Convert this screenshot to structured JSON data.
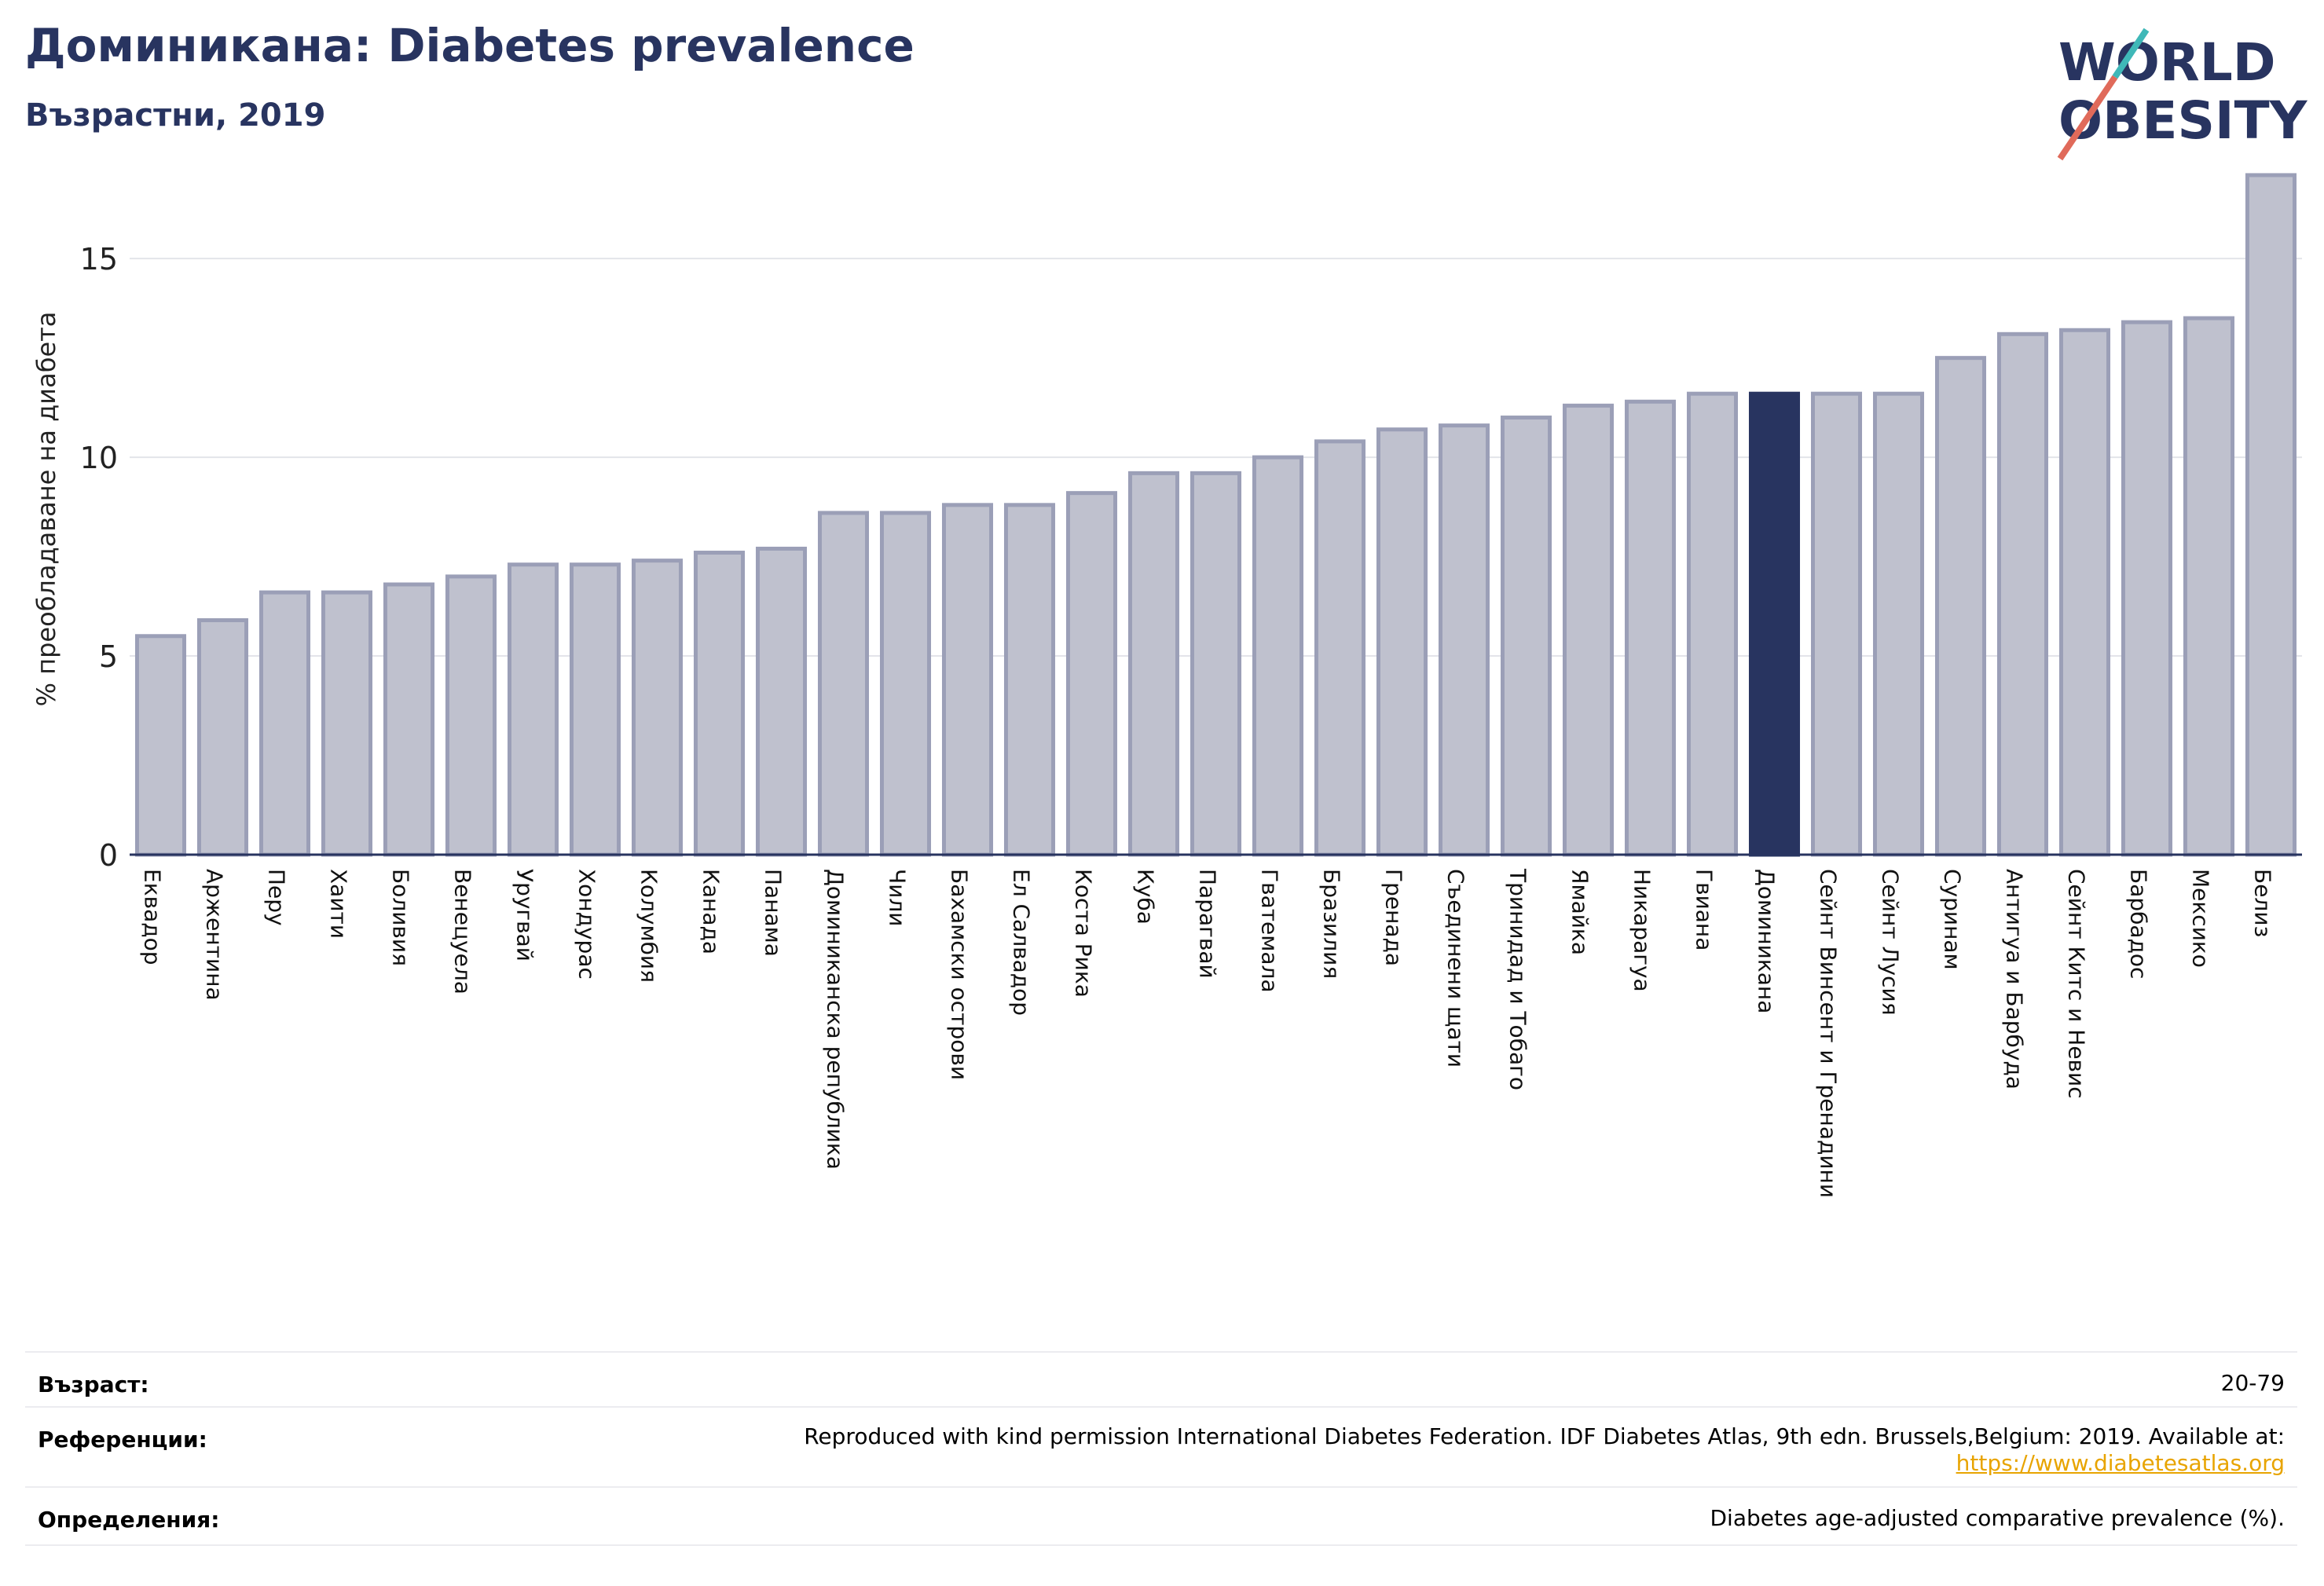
{
  "header": {
    "title": "Доминикана: Diabetes prevalence",
    "subtitle": "Възрастни, 2019"
  },
  "logo": {
    "line1": "WORLD",
    "line2": "OBESITY"
  },
  "colors": {
    "bar": "#bfc1ce",
    "bar_border": "#9b9fb7",
    "highlight": "#283460",
    "title": "#283460",
    "link": "#e8a400"
  },
  "chart_data": {
    "type": "bar",
    "ylabel": "% преобладаване на диабета",
    "ylim": [
      0,
      17
    ],
    "yticks": [
      0,
      5,
      10,
      15
    ],
    "grid": true,
    "highlight": "Доминикана",
    "categories": [
      "Еквадор",
      "Аржентина",
      "Перу",
      "Хаити",
      "Боливия",
      "Венецуела",
      "Уругвай",
      "Хондурас",
      "Колумбия",
      "Канада",
      "Панама",
      "Доминиканска република",
      "Чили",
      "Бахамски острови",
      "Ел Салвадор",
      "Коста Рика",
      "Куба",
      "Парагвай",
      "Гватемала",
      "Бразилия",
      "Гренада",
      "Съединени щати",
      "Тринидад и Тобаго",
      "Ямайка",
      "Никарагуа",
      "Гвиана",
      "Доминикана",
      "Сейнт Винсент и Гренадини",
      "Сейнт Лусия",
      "Суринам",
      "Антигуа и Барбуда",
      "Сейнт Китс и Невис",
      "Барбадос",
      "Мексико",
      "Белиз"
    ],
    "values": [
      5.5,
      5.9,
      6.6,
      6.6,
      6.8,
      7.0,
      7.3,
      7.3,
      7.4,
      7.6,
      7.7,
      8.6,
      8.6,
      8.8,
      8.8,
      9.1,
      9.6,
      9.6,
      10.0,
      10.4,
      10.7,
      10.8,
      11.0,
      11.3,
      11.4,
      11.6,
      11.6,
      11.6,
      11.6,
      12.5,
      13.1,
      13.2,
      13.4,
      13.5,
      17.1
    ]
  },
  "footer": {
    "age_label": "Възраст:",
    "age_value": "20-79",
    "ref_label": "Референции:",
    "ref_text": "Reproduced with kind permission International Diabetes Federation. IDF Diabetes Atlas, 9th edn. Brussels,Belgium: 2019. Available at:",
    "ref_link": "https://www.diabetesatlas.org",
    "def_label": "Определения:",
    "def_text": "Diabetes age-adjusted comparative prevalence (%)."
  }
}
